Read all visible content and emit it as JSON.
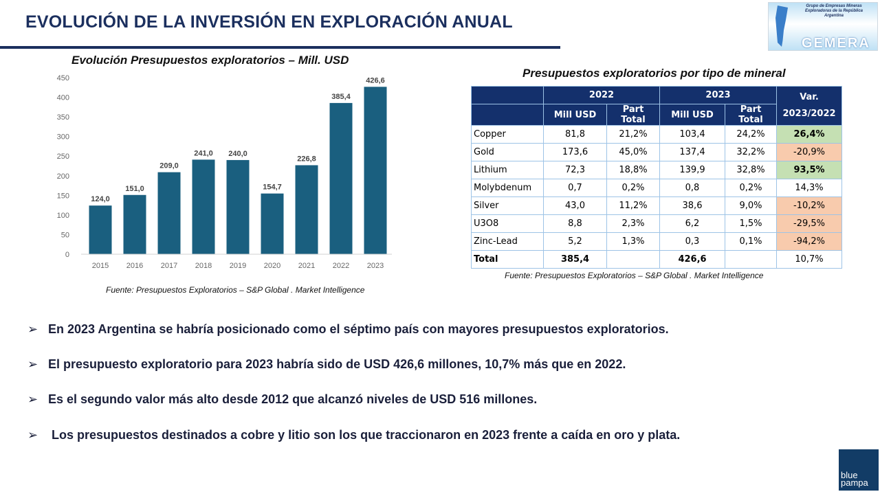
{
  "header": {
    "title": "EVOLUCIÓN DE LA INVERSIÓN EN EXPLORACIÓN ANUAL"
  },
  "logo": {
    "subtitle": "Grupo de Empresas Mineras Exploradoras de la República Argentina",
    "name": "GEMERA"
  },
  "chart_data": {
    "type": "bar",
    "title": "Evolución Presupuestos exploratorios – Mill. USD",
    "categories": [
      "2015",
      "2016",
      "2017",
      "2018",
      "2019",
      "2020",
      "2021",
      "2022",
      "2023"
    ],
    "values": [
      124.0,
      151.0,
      209.0,
      241.0,
      240.0,
      154.7,
      226.8,
      385.4,
      426.6
    ],
    "labels": [
      "124,0",
      "151,0",
      "209,0",
      "241,0",
      "240,0",
      "154,7",
      "226,8",
      "385,4",
      "426,6"
    ],
    "ylim": [
      0,
      450
    ],
    "yticks": [
      0,
      50,
      100,
      150,
      200,
      250,
      300,
      350,
      400,
      450
    ],
    "grid": false,
    "color": "#1a5f7f",
    "source": "Fuente: Presupuestos  Exploratorios – S&P  Global . Market Intelligence"
  },
  "table": {
    "title": "Presupuestos exploratorios por tipo de mineral",
    "years": [
      "2022",
      "2023"
    ],
    "var_header": [
      "Var.",
      "2023/2022"
    ],
    "subheaders": [
      "Mill USD",
      "Part Total",
      "Mill USD",
      "Part Total"
    ],
    "rows": [
      {
        "mineral": "Copper",
        "v22": "81,8",
        "p22": "21,2%",
        "v23": "103,4",
        "p23": "24,2%",
        "var": "26,4%",
        "status": "pos"
      },
      {
        "mineral": "Gold",
        "v22": "173,6",
        "p22": "45,0%",
        "v23": "137,4",
        "p23": "32,2%",
        "var": "-20,9%",
        "status": "neg"
      },
      {
        "mineral": "Lithium",
        "v22": "72,3",
        "p22": "18,8%",
        "v23": "139,9",
        "p23": "32,8%",
        "var": "93,5%",
        "status": "pos"
      },
      {
        "mineral": "Molybdenum",
        "v22": "0,7",
        "p22": "0,2%",
        "v23": "0,8",
        "p23": "0,2%",
        "var": "14,3%",
        "status": ""
      },
      {
        "mineral": "Silver",
        "v22": "43,0",
        "p22": "11,2%",
        "v23": "38,6",
        "p23": "9,0%",
        "var": "-10,2%",
        "status": "neg"
      },
      {
        "mineral": "U3O8",
        "v22": "8,8",
        "p22": "2,3%",
        "v23": "6,2",
        "p23": "1,5%",
        "var": "-29,5%",
        "status": "neg"
      },
      {
        "mineral": "Zinc-Lead",
        "v22": "5,2",
        "p22": "1,3%",
        "v23": "0,3",
        "p23": "0,1%",
        "var": "-94,2%",
        "status": "neg"
      }
    ],
    "total": {
      "label": "Total",
      "v22": "385,4",
      "v23": "426,6",
      "var": "10,7%"
    },
    "colors": {
      "positive": "#c5e0b3",
      "negative": "#f8cbad",
      "header": "#14306c"
    },
    "source": "Fuente: Presupuestos  Exploratorios – S&P  Global . Market Intelligence"
  },
  "bullets": [
    "En 2023 Argentina se habría posicionado como el séptimo país con mayores presupuestos exploratorios.",
    "El presupuesto exploratorio para 2023 habría sido de USD 426,6 millones, 10,7% más que en 2022.",
    "Es el segundo valor más alto desde 2012 que alcanzó niveles de USD 516 millones.",
    " Los presupuestos destinados a cobre y litio son los que traccionaron en 2023 frente a caída en oro y plata."
  ],
  "bullet_marker": "➢",
  "footer_logo": "blue pampa"
}
